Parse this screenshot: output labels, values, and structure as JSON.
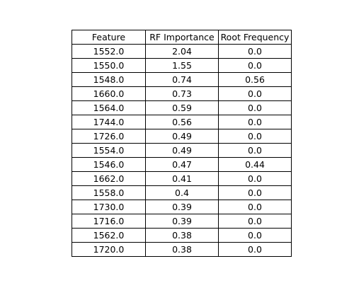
{
  "chart_data": {
    "type": "table",
    "columns": [
      "Feature",
      "RF Importance",
      "Root Frequency"
    ],
    "rows": [
      [
        "1552.0",
        "2.04",
        "0.0"
      ],
      [
        "1550.0",
        "1.55",
        "0.0"
      ],
      [
        "1548.0",
        "0.74",
        "0.56"
      ],
      [
        "1660.0",
        "0.73",
        "0.0"
      ],
      [
        "1564.0",
        "0.59",
        "0.0"
      ],
      [
        "1744.0",
        "0.56",
        "0.0"
      ],
      [
        "1726.0",
        "0.49",
        "0.0"
      ],
      [
        "1554.0",
        "0.49",
        "0.0"
      ],
      [
        "1546.0",
        "0.47",
        "0.44"
      ],
      [
        "1662.0",
        "0.41",
        "0.0"
      ],
      [
        "1558.0",
        "0.4",
        "0.0"
      ],
      [
        "1730.0",
        "0.39",
        "0.0"
      ],
      [
        "1716.0",
        "0.39",
        "0.0"
      ],
      [
        "1562.0",
        "0.38",
        "0.0"
      ],
      [
        "1720.0",
        "0.38",
        "0.0"
      ]
    ]
  }
}
